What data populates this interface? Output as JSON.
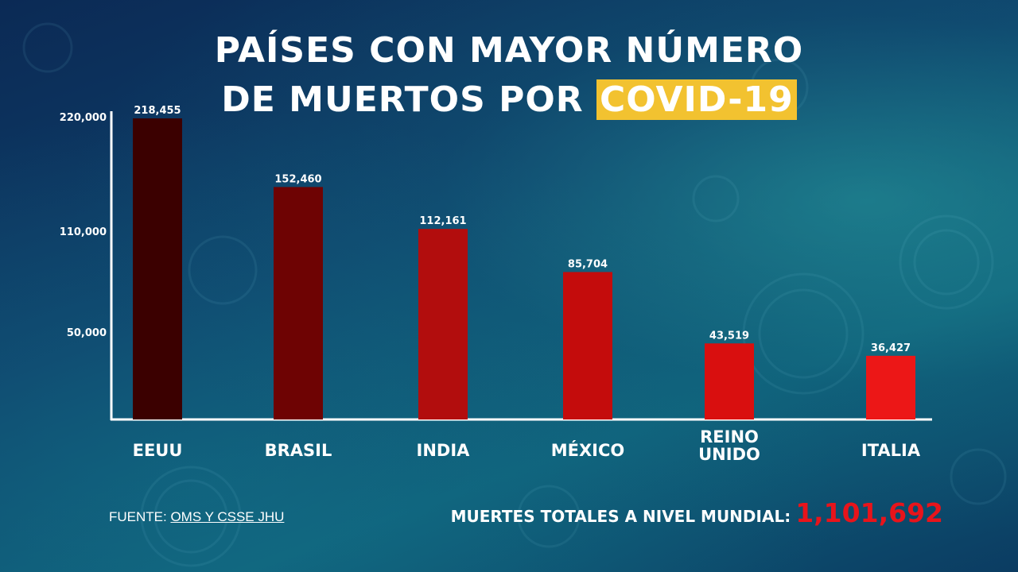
{
  "title": {
    "line1": "PAÍSES CON MAYOR NÚMERO",
    "line2_prefix": "DE MUERTOS POR ",
    "line2_highlight": "COVID-19"
  },
  "colors": {
    "highlight": "#f2c230",
    "total_number": "#e8141b",
    "bars": [
      "#3b0000",
      "#6e0303",
      "#b20d0d",
      "#c40c0c",
      "#d90f0f",
      "#ec1717"
    ]
  },
  "chart_data": {
    "type": "bar",
    "categories": [
      "EEUU",
      "BRASIL",
      "INDIA",
      "MÉXICO",
      "REINO UNIDO",
      "ITALIA"
    ],
    "values": [
      218455,
      152460,
      112161,
      85704,
      43519,
      36427
    ],
    "value_labels": [
      "218,455",
      "152,460",
      "112,161",
      "85,704",
      "43,519",
      "36,427"
    ],
    "y_ticks": [
      50000,
      110000,
      220000
    ],
    "y_tick_labels": [
      "50,000",
      "110,000",
      "220,000"
    ],
    "ylim": [
      0,
      220000
    ],
    "grid": false,
    "title": "",
    "xlabel": "",
    "ylabel": ""
  },
  "footer": {
    "source_prefix": "FUENTE: ",
    "source_link": "OMS Y CSSE JHU",
    "total_label": "MUERTES TOTALES A NIVEL MUNDIAL:",
    "total_value": "1,101,692"
  }
}
